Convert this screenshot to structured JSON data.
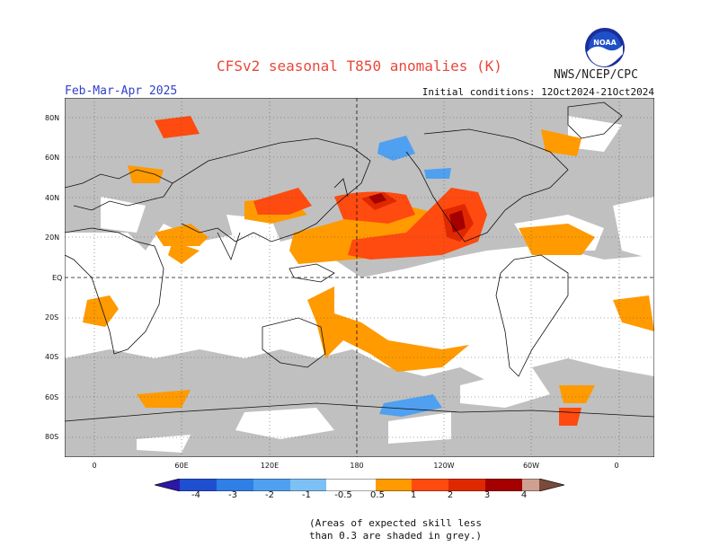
{
  "title": "CFSv2 seasonal T850 anomalies (K)",
  "agency": "NWS/NCEP/CPC",
  "logo_text": "NOAA",
  "season": "Feb-Mar-Apr 2025",
  "initial_conditions": "Initial conditions: 12Oct2024-21Oct2024",
  "lat_labels": [
    "80N",
    "60N",
    "40N",
    "20N",
    "EQ",
    "20S",
    "40S",
    "60S",
    "80S"
  ],
  "lon_labels": [
    "0",
    "60E",
    "120E",
    "180",
    "120W",
    "60W",
    "0"
  ],
  "colorbar": {
    "labels": [
      "-4",
      "-3",
      "-2",
      "-1",
      "-0.5",
      "0.5",
      "1",
      "2",
      "3",
      "4"
    ],
    "colors": [
      "#2a18a8",
      "#1f4fd0",
      "#2f7fe6",
      "#4fa0f0",
      "#7cc0f5",
      "#ffffff",
      "#ff9a00",
      "#ff4a10",
      "#e02800",
      "#a40000",
      "#cfa090",
      "#7a4a3a"
    ]
  },
  "map_colors": {
    "grey": "#c0c0c0",
    "land": "#ffffff",
    "orange": "#ff9a00",
    "red_orange": "#ff4a10",
    "red": "#e02800",
    "dark_red": "#a40000",
    "light_blue": "#4fa0f0"
  },
  "note_line1": "(Areas of expected skill less",
  "note_line2": "than 0.3 are shaded in grey.)"
}
